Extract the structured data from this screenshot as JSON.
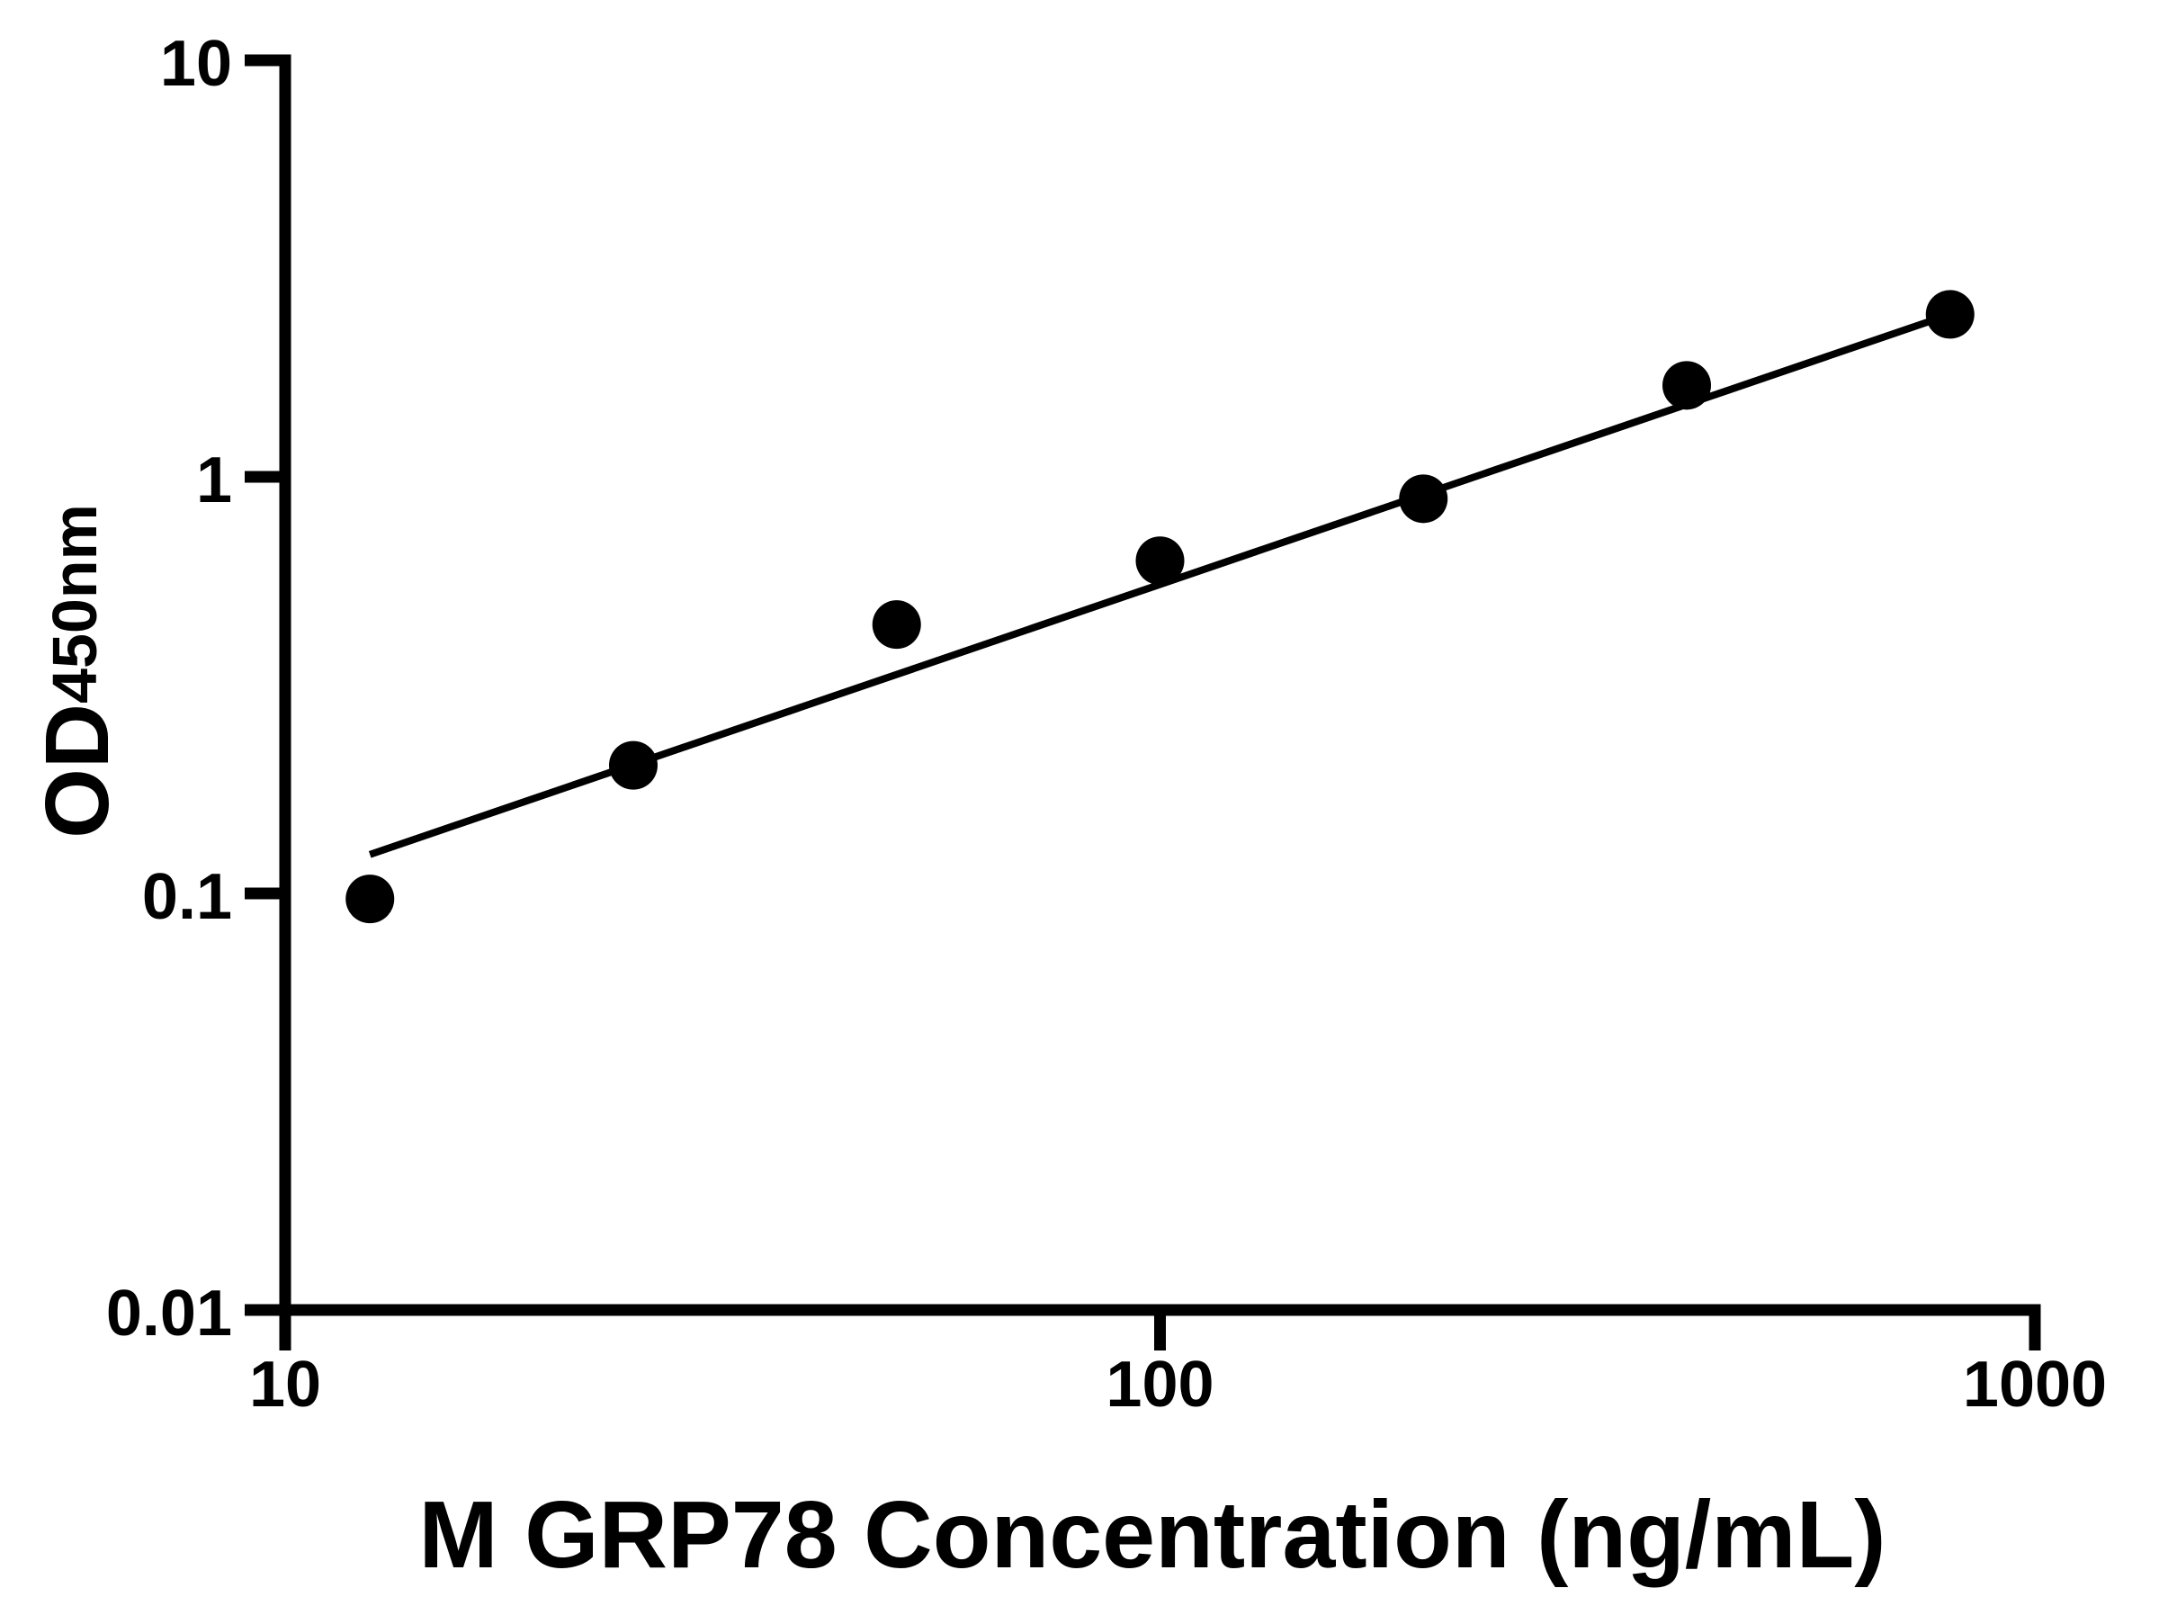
{
  "figure": {
    "background": "#ffffff",
    "ink_color": "#000000"
  },
  "chart_data": {
    "type": "scatter",
    "title": "",
    "xlabel": "M GRP78 Concentration (ng/mL)",
    "ylabel_main": "OD",
    "ylabel_sub": "450nm",
    "x_scale": "log",
    "y_scale": "log",
    "xlim": [
      10,
      1000
    ],
    "ylim": [
      0.01,
      10
    ],
    "grid": false,
    "legend": "none",
    "x_ticks": [
      {
        "value": 10,
        "label": "10"
      },
      {
        "value": 100,
        "label": "100"
      },
      {
        "value": 1000,
        "label": "1000"
      }
    ],
    "y_ticks": [
      {
        "value": 10,
        "label": "10"
      },
      {
        "value": 1,
        "label": "1"
      },
      {
        "value": 0.1,
        "label": "0.1"
      },
      {
        "value": 0.01,
        "label": "0.01"
      }
    ],
    "series": [
      {
        "name": "standard-curve-points",
        "marker": "circle",
        "color": "#000000",
        "points": [
          {
            "x": 12.5,
            "y": 0.097
          },
          {
            "x": 25,
            "y": 0.203
          },
          {
            "x": 50,
            "y": 0.442
          },
          {
            "x": 100,
            "y": 0.629
          },
          {
            "x": 200,
            "y": 0.886
          },
          {
            "x": 400,
            "y": 1.658
          },
          {
            "x": 800,
            "y": 2.455
          }
        ]
      }
    ],
    "fit_line": {
      "name": "power-fit-line",
      "color": "#000000",
      "x1": 12.5,
      "y1": 0.124,
      "x2": 800,
      "y2": 2.455
    }
  }
}
